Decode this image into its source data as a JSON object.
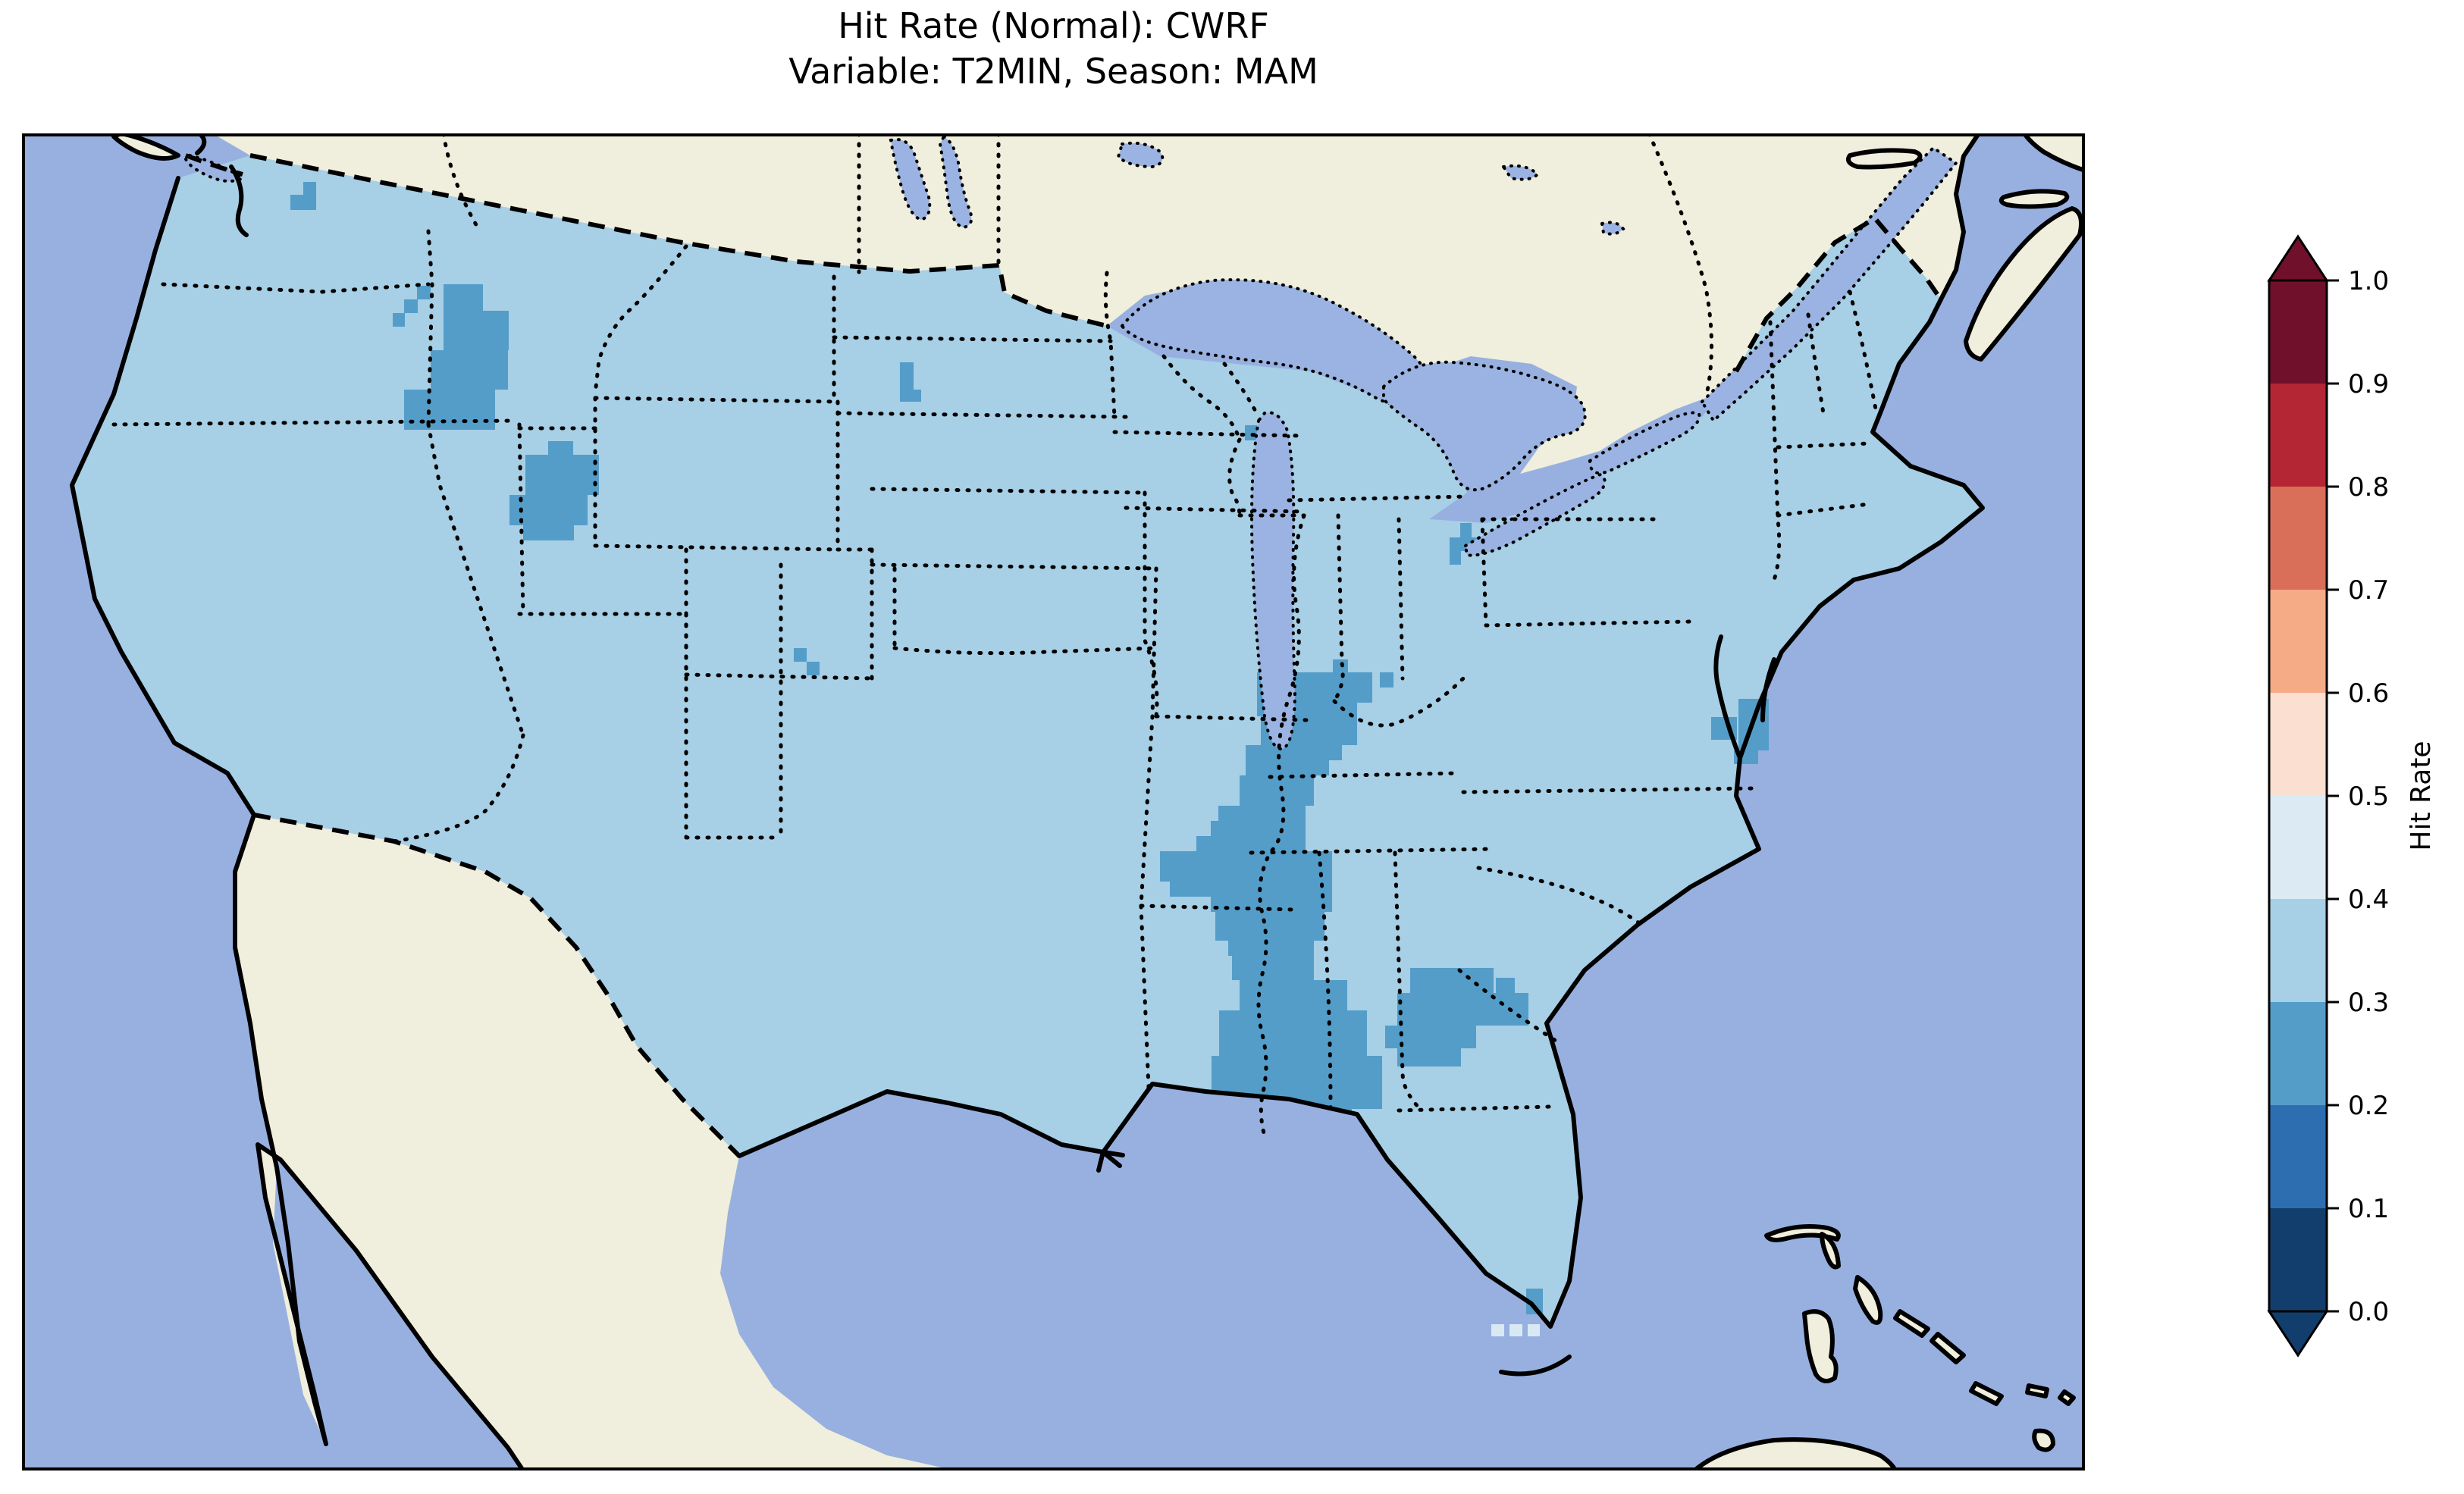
{
  "title": {
    "line1": "Hit Rate (Normal): CWRF",
    "line2": "Variable: T2MIN, Season: MAM"
  },
  "colorbar": {
    "label": "Hit Rate",
    "ticks": [
      "1.0",
      "0.9",
      "0.8",
      "0.7",
      "0.6",
      "0.5",
      "0.4",
      "0.3",
      "0.2",
      "0.1",
      "0.0"
    ],
    "bin_colors_top_to_bottom": [
      "#70102a",
      "#b42633",
      "#d96f59",
      "#f5ab85",
      "#fbdfd0",
      "#dcebf3",
      "#a7cfe5",
      "#549dc9",
      "#2d6eb0",
      "#123e6d"
    ],
    "extend_above_color": "#70102a",
    "extend_below_color": "#123e6d"
  },
  "map_colors": {
    "ocean": "#97b0e0",
    "land": "#f0eedc",
    "lakes": "#9ab3e2",
    "base_fill": "#a7cfe5",
    "low_fill": "#549dc9",
    "high_fill": "#d9e9f3",
    "coastline": "#000000"
  },
  "chart_data": {
    "type": "heatmap",
    "subtype": "choropleth_map",
    "title": "Hit Rate (Normal): CWRF",
    "metric": "Hit Rate",
    "model": "CWRF",
    "variable": "T2MIN",
    "season": "MAM",
    "region": "Continental United States",
    "value_bins": [
      0.0,
      0.1,
      0.2,
      0.3,
      0.4,
      0.5,
      0.6,
      0.7,
      0.8,
      0.9,
      1.0
    ],
    "colorbar_extend": "both",
    "base_value_range": "0.3-0.4 over most of CONUS",
    "low_value_range": "0.2-0.3",
    "high_value_range": "0.4-0.5",
    "low_regions": [
      {
        "name": "washington-border",
        "cells": [
          [
            371,
            64,
            17,
            19
          ],
          [
            354,
            81,
            17,
            20
          ],
          [
            371,
            81,
            17,
            20
          ]
        ]
      },
      {
        "name": "north-idaho-montana",
        "cells": [
          [
            521,
            201,
            18,
            18
          ],
          [
            504,
            219,
            18,
            18
          ],
          [
            489,
            237,
            16,
            18
          ],
          [
            556,
            199,
            52,
            35
          ],
          [
            556,
            234,
            86,
            52
          ],
          [
            539,
            286,
            102,
            52
          ],
          [
            504,
            338,
            120,
            53
          ]
        ]
      },
      {
        "name": "utah-se-idaho",
        "cells": [
          [
            694,
            406,
            33,
            20
          ],
          [
            664,
            424,
            97,
            53
          ],
          [
            643,
            477,
            103,
            40
          ],
          [
            661,
            517,
            67,
            20
          ]
        ]
      },
      {
        "name": "montana-wyoming-corner",
        "cells": [
          [
            1018,
            679,
            17,
            18
          ],
          [
            1035,
            697,
            17,
            18
          ]
        ]
      },
      {
        "name": "north-dakota",
        "cells": [
          [
            1158,
            302,
            18,
            36
          ],
          [
            1158,
            338,
            28,
            16
          ]
        ]
      },
      {
        "name": "lake-superior-shore",
        "cells": [
          [
            1501,
            268,
            16,
            18
          ]
        ]
      },
      {
        "name": "upper-michigan",
        "cells": [
          [
            1579,
            259,
            16,
            20
          ]
        ]
      },
      {
        "name": "wisconsin-shore",
        "cells": [
          [
            1613,
            385,
            16,
            20
          ]
        ]
      },
      {
        "name": "western-new-york-pennsylvania",
        "cells": [
          [
            1897,
            514,
            15,
            19
          ],
          [
            1883,
            533,
            43,
            18
          ],
          [
            1883,
            551,
            15,
            18
          ]
        ]
      },
      {
        "name": "mississippi-valley-tennessee-alabama",
        "cells": [
          [
            1729,
            694,
            20,
            18
          ],
          [
            1629,
            711,
            152,
            40
          ],
          [
            1791,
            711,
            18,
            20
          ],
          [
            1629,
            751,
            132,
            18
          ],
          [
            1634,
            769,
            127,
            38
          ],
          [
            1614,
            807,
            127,
            20
          ],
          [
            1614,
            827,
            110,
            20
          ],
          [
            1606,
            847,
            98,
            40
          ],
          [
            1578,
            887,
            115,
            20
          ],
          [
            1568,
            907,
            125,
            20
          ],
          [
            1549,
            927,
            144,
            20
          ],
          [
            1501,
            947,
            227,
            40
          ],
          [
            1514,
            987,
            214,
            20
          ],
          [
            1568,
            1007,
            160,
            20
          ],
          [
            1574,
            1027,
            144,
            38
          ],
          [
            1591,
            1065,
            113,
            20
          ],
          [
            1596,
            1085,
            108,
            32
          ],
          [
            1606,
            1117,
            142,
            40
          ],
          [
            1579,
            1157,
            195,
            60
          ],
          [
            1569,
            1217,
            225,
            44
          ],
          [
            1569,
            1261,
            225,
            26
          ],
          [
            1561,
            1287,
            193,
            40
          ],
          [
            1521,
            1337,
            32,
            24
          ]
        ]
      },
      {
        "name": "georgia-south-carolina",
        "cells": [
          [
            1831,
            1101,
            110,
            33
          ],
          [
            1814,
            1134,
            173,
            43
          ],
          [
            1798,
            1177,
            120,
            30
          ],
          [
            1814,
            1207,
            84,
            24
          ],
          [
            1944,
            1114,
            25,
            37
          ]
        ]
      },
      {
        "name": "chesapeake-virginia",
        "cells": [
          [
            2228,
            770,
            34,
            30
          ],
          [
            2264,
            746,
            40,
            68
          ],
          [
            2258,
            814,
            32,
            18
          ]
        ]
      },
      {
        "name": "south-florida-tip",
        "cells": [
          [
            1984,
            1524,
            22,
            34
          ]
        ]
      }
    ],
    "high_regions": [
      {
        "name": "florida-keys",
        "cells": [
          [
            1938,
            1571,
            17,
            16
          ],
          [
            1962,
            1571,
            17,
            16
          ],
          [
            1986,
            1571,
            16,
            16
          ]
        ]
      }
    ]
  }
}
